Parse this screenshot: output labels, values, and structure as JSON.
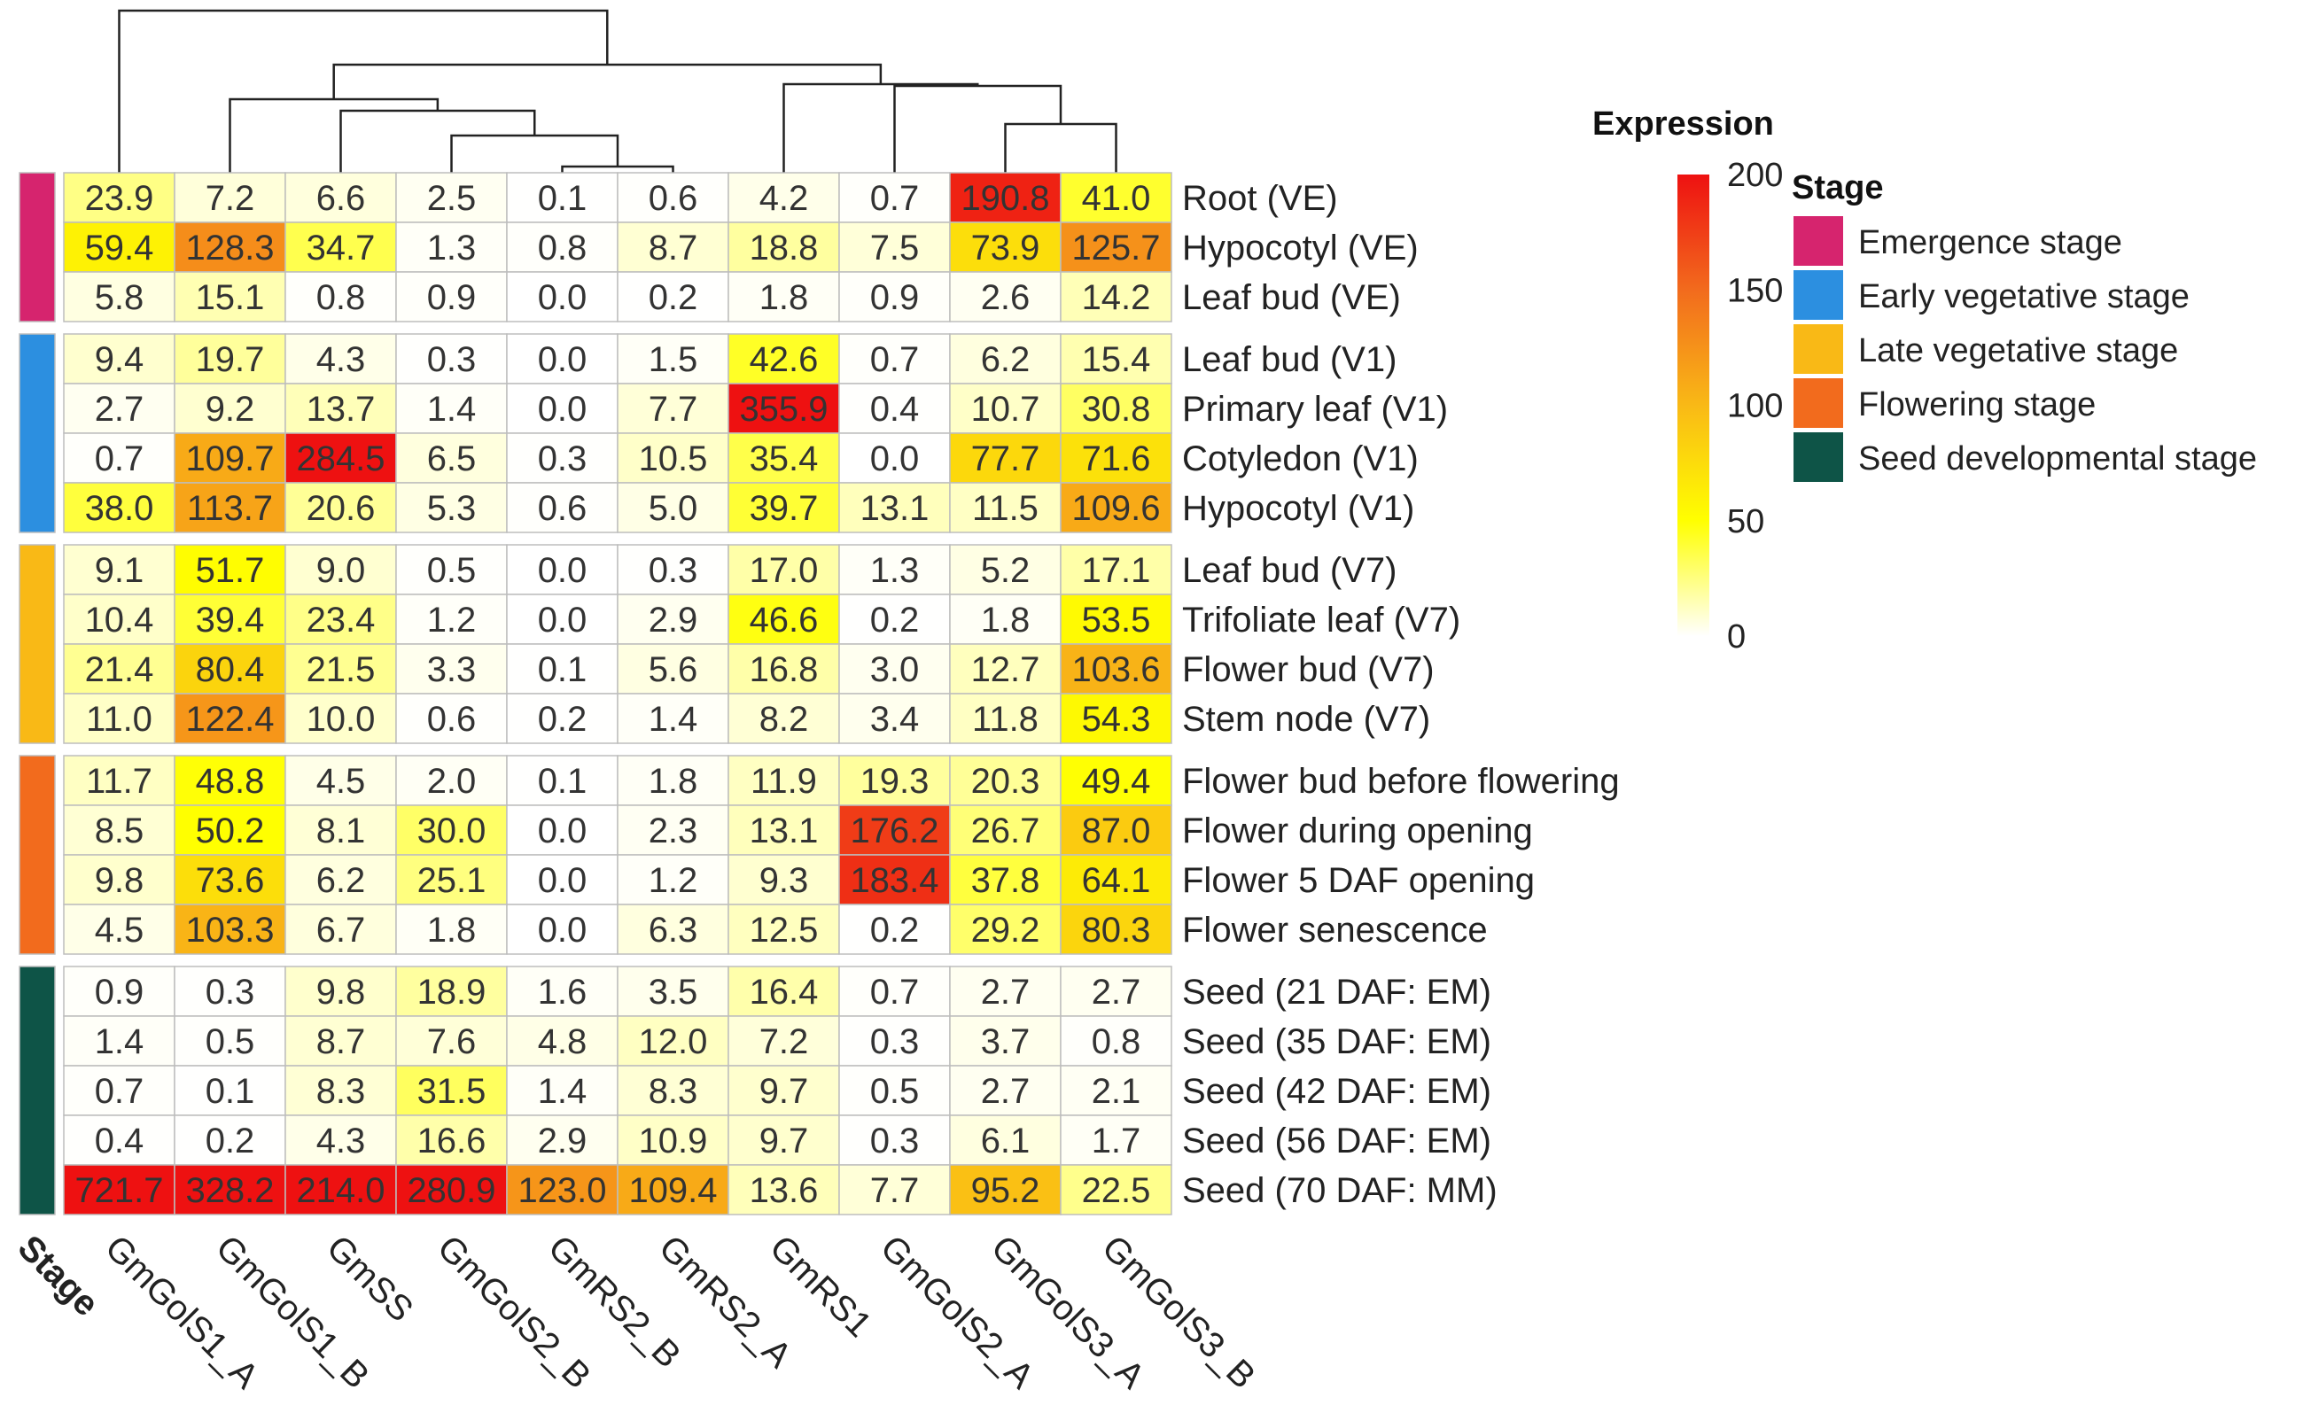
{
  "chart_data": {
    "type": "heatmap",
    "title": "",
    "columns": [
      "GmGolS1_A",
      "GmGolS1_B",
      "GmSS",
      "GmGolS2_B",
      "GmRS2_B",
      "GmRS2_A",
      "GmRS1",
      "GmGolS2_A",
      "GmGolS3_A",
      "GmGolS3_B"
    ],
    "stage_axis_label": "Stage",
    "groups": [
      {
        "stage": "Emergence stage",
        "color": "#D6246E",
        "rows": [
          {
            "label": "Root (VE)",
            "values": [
              23.9,
              7.2,
              6.6,
              2.5,
              0.1,
              0.6,
              4.2,
              0.7,
              190.8,
              41.0
            ]
          },
          {
            "label": "Hypocotyl (VE)",
            "values": [
              59.4,
              128.3,
              34.7,
              1.3,
              0.8,
              8.7,
              18.8,
              7.5,
              73.9,
              125.7
            ]
          },
          {
            "label": "Leaf bud (VE)",
            "values": [
              5.8,
              15.1,
              0.8,
              0.9,
              0.0,
              0.2,
              1.8,
              0.9,
              2.6,
              14.2
            ]
          }
        ]
      },
      {
        "stage": "Early vegetative stage",
        "color": "#2C8FE0",
        "rows": [
          {
            "label": "Leaf bud (V1)",
            "values": [
              9.4,
              19.7,
              4.3,
              0.3,
              0.0,
              1.5,
              42.6,
              0.7,
              6.2,
              15.4
            ]
          },
          {
            "label": "Primary leaf (V1)",
            "values": [
              2.7,
              9.2,
              13.7,
              1.4,
              0.0,
              7.7,
              355.9,
              0.4,
              10.7,
              30.8
            ]
          },
          {
            "label": "Cotyledon (V1)",
            "values": [
              0.7,
              109.7,
              284.5,
              6.5,
              0.3,
              10.5,
              35.4,
              0.0,
              77.7,
              71.6
            ]
          },
          {
            "label": "Hypocotyl (V1)",
            "values": [
              38.0,
              113.7,
              20.6,
              5.3,
              0.6,
              5.0,
              39.7,
              13.1,
              11.5,
              109.6
            ]
          }
        ]
      },
      {
        "stage": "Late vegetative stage",
        "color": "#F9B916",
        "rows": [
          {
            "label": "Leaf bud (V7)",
            "values": [
              9.1,
              51.7,
              9.0,
              0.5,
              0.0,
              0.3,
              17.0,
              1.3,
              5.2,
              17.1
            ]
          },
          {
            "label": "Trifoliate leaf (V7)",
            "values": [
              10.4,
              39.4,
              23.4,
              1.2,
              0.0,
              2.9,
              46.6,
              0.2,
              1.8,
              53.5
            ]
          },
          {
            "label": "Flower bud (V7)",
            "values": [
              21.4,
              80.4,
              21.5,
              3.3,
              0.1,
              5.6,
              16.8,
              3.0,
              12.7,
              103.6
            ]
          },
          {
            "label": "Stem node (V7)",
            "values": [
              11.0,
              122.4,
              10.0,
              0.6,
              0.2,
              1.4,
              8.2,
              3.4,
              11.8,
              54.3
            ]
          }
        ]
      },
      {
        "stage": "Flowering stage",
        "color": "#F26B1D",
        "rows": [
          {
            "label": "Flower bud before flowering",
            "values": [
              11.7,
              48.8,
              4.5,
              2.0,
              0.1,
              1.8,
              11.9,
              19.3,
              20.3,
              49.4
            ]
          },
          {
            "label": "Flower during opening",
            "values": [
              8.5,
              50.2,
              8.1,
              30.0,
              0.0,
              2.3,
              13.1,
              176.2,
              26.7,
              87.0
            ]
          },
          {
            "label": "Flower 5 DAF opening",
            "values": [
              9.8,
              73.6,
              6.2,
              25.1,
              0.0,
              1.2,
              9.3,
              183.4,
              37.8,
              64.1
            ]
          },
          {
            "label": "Flower senescence",
            "values": [
              4.5,
              103.3,
              6.7,
              1.8,
              0.0,
              6.3,
              12.5,
              0.2,
              29.2,
              80.3
            ]
          }
        ]
      },
      {
        "stage": "Seed developmental stage",
        "color": "#0E5447",
        "rows": [
          {
            "label": "Seed (21 DAF: EM)",
            "values": [
              0.9,
              0.3,
              9.8,
              18.9,
              1.6,
              3.5,
              16.4,
              0.7,
              2.7,
              2.7
            ]
          },
          {
            "label": "Seed (35 DAF: EM)",
            "values": [
              1.4,
              0.5,
              8.7,
              7.6,
              4.8,
              12.0,
              7.2,
              0.3,
              3.7,
              0.8
            ]
          },
          {
            "label": "Seed (42 DAF: EM)",
            "values": [
              0.7,
              0.1,
              8.3,
              31.5,
              1.4,
              8.3,
              9.7,
              0.5,
              2.7,
              2.1
            ]
          },
          {
            "label": "Seed (56 DAF: EM)",
            "values": [
              0.4,
              0.2,
              4.3,
              16.6,
              2.9,
              10.9,
              9.7,
              0.3,
              6.1,
              1.7
            ]
          },
          {
            "label": "Seed (70 DAF: MM)",
            "values": [
              721.7,
              328.2,
              214.0,
              280.9,
              123.0,
              109.4,
              13.6,
              7.7,
              95.2,
              22.5
            ]
          }
        ]
      }
    ],
    "color_scale": {
      "title": "Expression",
      "min": 0,
      "max": 200,
      "ticks": [
        0,
        50,
        100,
        150,
        200
      ],
      "stops": [
        {
          "value": 0,
          "color": "#FFFFFF"
        },
        {
          "value": 50,
          "color": "#FFFF00"
        },
        {
          "value": 100,
          "color": "#F9B916"
        },
        {
          "value": 150,
          "color": "#F26B1D"
        },
        {
          "value": 200,
          "color": "#EE1111"
        }
      ]
    },
    "stage_legend_title": "Stage",
    "dendrogram": "column clustering"
  }
}
